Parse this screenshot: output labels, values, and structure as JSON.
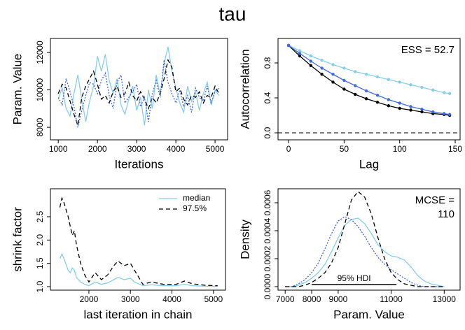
{
  "title": "tau",
  "chart_data": [
    {
      "type": "line",
      "xlabel": "Iterations",
      "ylabel": "Param. Value",
      "xlim": [
        800,
        5320
      ],
      "ylim": [
        7330,
        12750
      ],
      "xticks": [
        1000,
        2000,
        3000,
        4000,
        5000
      ],
      "yticks": [
        8000,
        10000,
        12000
      ],
      "x": [
        1000,
        1100,
        1200,
        1300,
        1400,
        1500,
        1600,
        1700,
        1800,
        1900,
        2000,
        2100,
        2200,
        2300,
        2400,
        2500,
        2600,
        2700,
        2800,
        2900,
        3000,
        3100,
        3200,
        3300,
        3400,
        3500,
        3600,
        3700,
        3800,
        3900,
        4000,
        4100,
        4200,
        4300,
        4400,
        4500,
        4600,
        4700,
        4800,
        4900,
        5000,
        5100
      ],
      "series": [
        {
          "color": "#87ceeb",
          "line_style": "solid",
          "values": [
            9500,
            10100,
            9000,
            8600,
            9800,
            10800,
            9500,
            8300,
            9400,
            10200,
            11800,
            11000,
            11900,
            10500,
            9800,
            10600,
            9200,
            8700,
            9500,
            10200,
            8900,
            9600,
            8100,
            10000,
            9000,
            10800,
            9700,
            11400,
            12300,
            11000,
            10100,
            9300,
            8800,
            10200,
            9400,
            9900,
            8900,
            9800,
            10400,
            9200,
            10000,
            9700
          ]
        },
        {
          "color": "#000000",
          "line_style": "dashed",
          "values": [
            9800,
            10300,
            10100,
            9400,
            8700,
            8100,
            9600,
            10200,
            10600,
            11000,
            10300,
            9500,
            9700,
            9300,
            9900,
            10200,
            9600,
            9800,
            10400,
            9700,
            9400,
            9900,
            9500,
            9000,
            9600,
            9300,
            9800,
            10600,
            11600,
            11200,
            9900,
            10100,
            9500,
            9200,
            9700,
            9600,
            9900,
            9300,
            9700,
            9600,
            10200,
            9800
          ]
        },
        {
          "color": "#4169e1",
          "line_style": "dotted",
          "values": [
            9600,
            9200,
            10600,
            9900,
            9100,
            8000,
            8900,
            9700,
            10400,
            10300,
            9800,
            10500,
            10900,
            9700,
            9000,
            10400,
            10800,
            9300,
            9600,
            9900,
            10300,
            9100,
            9600,
            8300,
            9800,
            10500,
            9600,
            11600,
            10400,
            9800,
            9300,
            10000,
            9100,
            9700,
            8800,
            10100,
            9600,
            9400,
            10200,
            9300,
            9900,
            10100
          ]
        }
      ]
    },
    {
      "type": "line",
      "points": true,
      "xlabel": "Lag",
      "ylabel": "Autocorrelation",
      "annotation": [
        "ESS = 52.7"
      ],
      "xlim": [
        -9.5,
        154.4
      ],
      "ylim": [
        -0.08,
        1.08
      ],
      "xticks": [
        0,
        50,
        100,
        150
      ],
      "yticks": [
        {
          "value": 0,
          "label": "0.0"
        },
        0.4,
        0.8
      ],
      "reference_line": 0,
      "x": [
        0,
        10,
        20,
        30,
        40,
        50,
        60,
        70,
        80,
        90,
        100,
        110,
        120,
        130,
        140,
        145
      ],
      "series": [
        {
          "color": "#87ceeb",
          "line_style": "solid",
          "values": [
            1,
            0.94,
            0.88,
            0.83,
            0.78,
            0.74,
            0.7,
            0.67,
            0.64,
            0.61,
            0.58,
            0.55,
            0.52,
            0.49,
            0.46,
            0.45
          ]
        },
        {
          "color": "#000000",
          "line_style": "solid",
          "values": [
            1,
            0.88,
            0.77,
            0.67,
            0.58,
            0.5,
            0.44,
            0.39,
            0.35,
            0.31,
            0.28,
            0.26,
            0.24,
            0.22,
            0.21,
            0.2
          ]
        },
        {
          "color": "#4169e1",
          "line_style": "solid",
          "values": [
            1,
            0.91,
            0.82,
            0.74,
            0.67,
            0.6,
            0.54,
            0.48,
            0.43,
            0.38,
            0.34,
            0.3,
            0.27,
            0.24,
            0.22,
            0.21
          ]
        }
      ]
    },
    {
      "type": "line",
      "xlabel": "last iteration in chain",
      "ylabel": "shrink factor",
      "legend": "top-right",
      "xlim": [
        1073,
        5290
      ],
      "ylim": [
        0.925,
        3.1
      ],
      "xticks": [
        2000,
        3000,
        4000,
        5000
      ],
      "yticks": [
        {
          "value": 1,
          "label": "1.0"
        },
        1.5,
        {
          "value": 2,
          "label": "2.0"
        },
        2.5
      ],
      "x": [
        1300,
        1350,
        1400,
        1500,
        1550,
        1600,
        1650,
        1700,
        1800,
        1900,
        2000,
        2150,
        2300,
        2450,
        2600,
        2700,
        2850,
        3000,
        3100,
        3300,
        3500,
        3800,
        4100,
        4300,
        4500,
        4800,
        5100
      ],
      "series": [
        {
          "name": "median",
          "color": "#87ceeb",
          "line_style": "solid",
          "values": [
            1.6,
            1.7,
            1.6,
            1.35,
            1.3,
            1.4,
            1.35,
            1.2,
            1.1,
            1.05,
            1.02,
            1.1,
            1.05,
            1.08,
            1.15,
            1.2,
            1.15,
            1.18,
            1.1,
            1.02,
            1.04,
            1.02,
            1.02,
            1.05,
            1.02,
            1.01,
            1.01
          ]
        },
        {
          "name": "97.5%",
          "color": "#000000",
          "line_style": "dashed",
          "values": [
            2.7,
            2.9,
            2.8,
            2.5,
            2.3,
            2.1,
            2.2,
            1.9,
            1.5,
            1.25,
            1.1,
            1.3,
            1.15,
            1.25,
            1.45,
            1.55,
            1.45,
            1.5,
            1.35,
            1.05,
            1.1,
            1.05,
            1.05,
            1.12,
            1.06,
            1.03,
            1.02
          ]
        }
      ]
    },
    {
      "type": "line",
      "xlabel": "Param. Value",
      "ylabel": "Density",
      "annotation": [
        "MCSE =",
        "110"
      ],
      "xlim": [
        6730,
        13600
      ],
      "ylim": [
        -2.5e-05,
        0.0007
      ],
      "xticks": [
        7000,
        8000,
        9000,
        11000,
        13000
      ],
      "yticks": [
        {
          "value": 0,
          "label": "0.0000"
        },
        0.0002,
        0.0004,
        0.0006
      ],
      "hdi": [
        8000,
        11200
      ],
      "hdi_label": "95% HDI",
      "x": [
        7000,
        7250,
        7500,
        7750,
        8000,
        8250,
        8500,
        8750,
        9000,
        9250,
        9500,
        9750,
        10000,
        10250,
        10500,
        10750,
        11000,
        11250,
        11500,
        11750,
        12000,
        12250,
        12500,
        12750,
        13000
      ],
      "series": [
        {
          "color": "#87ceeb",
          "line_style": "solid",
          "values": [
            0,
            0,
            1e-05,
            3e-05,
            6e-05,
            0.0001,
            0.00016,
            0.00025,
            0.00035,
            0.00044,
            0.00048,
            0.00049,
            0.00045,
            0.00038,
            0.0003,
            0.00025,
            0.00022,
            0.00021,
            0.00019,
            0.00014,
            8e-05,
            4e-05,
            2e-05,
            1e-05,
            0
          ]
        },
        {
          "color": "#4169e1",
          "line_style": "dotted",
          "values": [
            0,
            0,
            2e-05,
            5e-05,
            0.0001,
            0.00017,
            0.00027,
            0.00038,
            0.00047,
            0.0005,
            0.00048,
            0.00043,
            0.00036,
            0.00028,
            0.00021,
            0.00016,
            0.00012,
            9e-05,
            6e-05,
            3e-05,
            1e-05,
            0,
            0,
            0,
            0
          ]
        },
        {
          "color": "#000000",
          "line_style": "dashed",
          "values": [
            0,
            0,
            0,
            1e-05,
            3e-05,
            6e-05,
            0.0001,
            0.00017,
            0.00028,
            0.00045,
            0.00062,
            0.00068,
            0.00064,
            0.00052,
            0.00035,
            0.0002,
            0.0001,
            5e-05,
            2e-05,
            1e-05,
            0,
            0,
            0,
            0,
            0
          ]
        }
      ]
    }
  ]
}
